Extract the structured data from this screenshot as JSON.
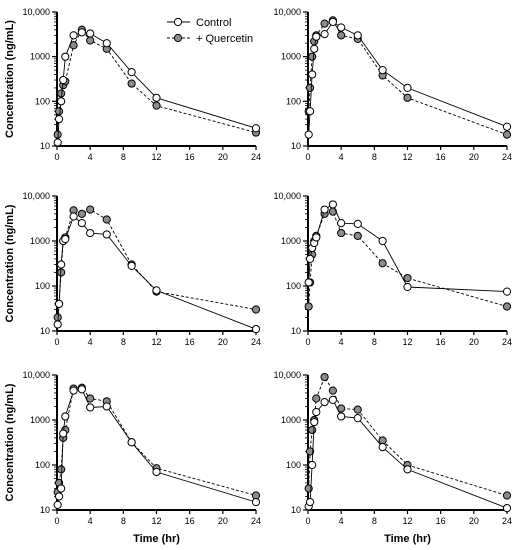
{
  "legend": {
    "control_label": "Control",
    "quercetin_label": "+ Quercetin"
  },
  "chart_data": [
    {
      "type": "line",
      "yscale": "log",
      "ylim": [
        10,
        10000
      ],
      "xlim": [
        0,
        24
      ],
      "xticks": [
        0,
        4,
        8,
        12,
        16,
        20,
        24
      ],
      "ytick_labels": [
        "10",
        "100",
        "1000",
        "10,000"
      ],
      "ylabel": "Concentration (ng/mL)",
      "xlabel": "",
      "series": [
        {
          "name": "Control",
          "points": [
            [
              0.083,
              12
            ],
            [
              0.25,
              40
            ],
            [
              0.5,
              100
            ],
            [
              0.75,
              300
            ],
            [
              1,
              1000
            ],
            [
              2,
              3000
            ],
            [
              3,
              3500
            ],
            [
              4,
              3300
            ],
            [
              6,
              2000
            ],
            [
              9,
              450
            ],
            [
              12,
              120
            ],
            [
              24,
              25
            ]
          ]
        },
        {
          "name": "+ Quercetin",
          "points": [
            [
              0.083,
              18
            ],
            [
              0.25,
              60
            ],
            [
              0.5,
              150
            ],
            [
              0.75,
              230
            ],
            [
              1,
              280
            ],
            [
              2,
              1800
            ],
            [
              3,
              4000
            ],
            [
              4,
              2300
            ],
            [
              6,
              1500
            ],
            [
              9,
              250
            ],
            [
              12,
              80
            ],
            [
              24,
              20
            ]
          ]
        }
      ]
    },
    {
      "type": "line",
      "yscale": "log",
      "ylim": [
        10,
        10000
      ],
      "xlim": [
        0,
        24
      ],
      "xticks": [
        0,
        4,
        8,
        12,
        16,
        20,
        24
      ],
      "ytick_labels": [
        "10",
        "100",
        "1000",
        "10,000"
      ],
      "ylabel": "",
      "xlabel": "",
      "series": [
        {
          "name": "Control",
          "points": [
            [
              0.083,
              18
            ],
            [
              0.25,
              60
            ],
            [
              0.5,
              400
            ],
            [
              0.75,
              1500
            ],
            [
              1,
              2800
            ],
            [
              2,
              3200
            ],
            [
              3,
              6000
            ],
            [
              4,
              4500
            ],
            [
              6,
              3000
            ],
            [
              9,
              500
            ],
            [
              12,
              200
            ],
            [
              24,
              27
            ]
          ]
        },
        {
          "name": "+ Quercetin",
          "points": [
            [
              0.083,
              60
            ],
            [
              0.25,
              200
            ],
            [
              0.5,
              1000
            ],
            [
              0.75,
              2200
            ],
            [
              1,
              3000
            ],
            [
              2,
              5500
            ],
            [
              3,
              6500
            ],
            [
              4,
              3000
            ],
            [
              6,
              2500
            ],
            [
              9,
              380
            ],
            [
              12,
              120
            ],
            [
              24,
              18
            ]
          ]
        }
      ]
    },
    {
      "type": "line",
      "yscale": "log",
      "ylim": [
        10,
        10000
      ],
      "xlim": [
        0,
        24
      ],
      "xticks": [
        0,
        4,
        8,
        12,
        16,
        20,
        24
      ],
      "ytick_labels": [
        "10",
        "100",
        "1000",
        "10,000"
      ],
      "ylabel": "Concentration (ng/mL)",
      "xlabel": "",
      "series": [
        {
          "name": "Control",
          "points": [
            [
              0.083,
              14
            ],
            [
              0.25,
              40
            ],
            [
              0.5,
              300
            ],
            [
              0.75,
              1000
            ],
            [
              1,
              1100
            ],
            [
              2,
              3500
            ],
            [
              3,
              2500
            ],
            [
              4,
              1500
            ],
            [
              6,
              1400
            ],
            [
              9,
              280
            ],
            [
              12,
              80
            ],
            [
              24,
              11
            ]
          ]
        },
        {
          "name": "+ Quercetin",
          "points": [
            [
              0.083,
              20
            ],
            [
              0.25,
              40
            ],
            [
              0.5,
              200
            ],
            [
              0.75,
              1000
            ],
            [
              1,
              1200
            ],
            [
              2,
              4800
            ],
            [
              3,
              4000
            ],
            [
              4,
              5000
            ],
            [
              6,
              3000
            ],
            [
              9,
              300
            ],
            [
              12,
              75
            ],
            [
              24,
              30
            ]
          ]
        }
      ]
    },
    {
      "type": "line",
      "yscale": "log",
      "ylim": [
        10,
        10000
      ],
      "xlim": [
        0,
        24
      ],
      "xticks": [
        0,
        4,
        8,
        12,
        16,
        20,
        24
      ],
      "ytick_labels": [
        "10",
        "100",
        "1000",
        "10,000"
      ],
      "ylabel": "",
      "xlabel": "",
      "series": [
        {
          "name": "Control",
          "points": [
            [
              0.083,
              120
            ],
            [
              0.25,
              400
            ],
            [
              0.5,
              700
            ],
            [
              0.75,
              900
            ],
            [
              1,
              1200
            ],
            [
              2,
              5000
            ],
            [
              3,
              6500
            ],
            [
              4,
              2500
            ],
            [
              6,
              2400
            ],
            [
              9,
              1000
            ],
            [
              12,
              95
            ],
            [
              24,
              75
            ]
          ]
        },
        {
          "name": "+ Quercetin",
          "points": [
            [
              0.083,
              35
            ],
            [
              0.25,
              120
            ],
            [
              0.5,
              500
            ],
            [
              0.75,
              1000
            ],
            [
              1,
              1300
            ],
            [
              2,
              4000
            ],
            [
              3,
              4500
            ],
            [
              4,
              1500
            ],
            [
              6,
              1300
            ],
            [
              9,
              320
            ],
            [
              12,
              150
            ],
            [
              24,
              35
            ]
          ]
        }
      ]
    },
    {
      "type": "line",
      "yscale": "log",
      "ylim": [
        10,
        10000
      ],
      "xlim": [
        0,
        24
      ],
      "xticks": [
        0,
        4,
        8,
        12,
        16,
        20,
        24
      ],
      "ytick_labels": [
        "10",
        "100",
        "1000",
        "10,000"
      ],
      "ylabel": "Concentration (ng/mL)",
      "xlabel": "Time (hr)",
      "series": [
        {
          "name": "Control",
          "points": [
            [
              0.083,
              13
            ],
            [
              0.25,
              20
            ],
            [
              0.5,
              30
            ],
            [
              0.75,
              500
            ],
            [
              1,
              1200
            ],
            [
              2,
              4500
            ],
            [
              3,
              4800
            ],
            [
              4,
              1900
            ],
            [
              6,
              2000
            ],
            [
              9,
              320
            ],
            [
              12,
              70
            ],
            [
              24,
              15
            ]
          ]
        },
        {
          "name": "+ Quercetin",
          "points": [
            [
              0.083,
              25
            ],
            [
              0.25,
              40
            ],
            [
              0.5,
              80
            ],
            [
              0.75,
              400
            ],
            [
              1,
              600
            ],
            [
              2,
              5000
            ],
            [
              3,
              5200
            ],
            [
              4,
              3000
            ],
            [
              6,
              2600
            ],
            [
              9,
              320
            ],
            [
              12,
              85
            ],
            [
              24,
              21
            ]
          ]
        }
      ]
    },
    {
      "type": "line",
      "yscale": "log",
      "ylim": [
        10,
        10000
      ],
      "xlim": [
        0,
        24
      ],
      "xticks": [
        0,
        4,
        8,
        12,
        16,
        20,
        24
      ],
      "ytick_labels": [
        "10",
        "100",
        "1000",
        "10,000"
      ],
      "ylabel": "",
      "xlabel": "Time (hr)",
      "series": [
        {
          "name": "Control",
          "points": [
            [
              0.083,
              12
            ],
            [
              0.25,
              15
            ],
            [
              0.5,
              100
            ],
            [
              0.75,
              900
            ],
            [
              1,
              1500
            ],
            [
              2,
              2500
            ],
            [
              3,
              2800
            ],
            [
              4,
              1200
            ],
            [
              6,
              1100
            ],
            [
              9,
              250
            ],
            [
              12,
              80
            ],
            [
              24,
              11
            ]
          ]
        },
        {
          "name": "+ Quercetin",
          "points": [
            [
              0.083,
              30
            ],
            [
              0.25,
              200
            ],
            [
              0.5,
              600
            ],
            [
              0.75,
              1000
            ],
            [
              1,
              3000
            ],
            [
              2,
              9000
            ],
            [
              3,
              4500
            ],
            [
              4,
              1800
            ],
            [
              6,
              1700
            ],
            [
              9,
              350
            ],
            [
              12,
              100
            ],
            [
              24,
              21
            ]
          ]
        }
      ]
    }
  ]
}
